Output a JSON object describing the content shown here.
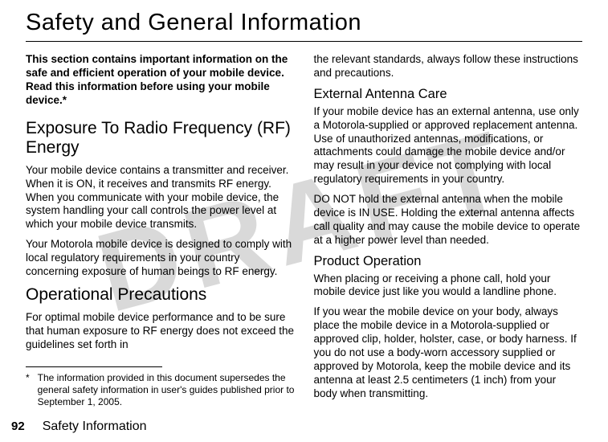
{
  "watermark": "DRAFT",
  "title": "Safety and General Information",
  "intro": "This section contains important information on the safe and efficient operation of your mobile device. Read this information before using your mobile device.*",
  "left": {
    "h2a": "Exposure To Radio Frequency (RF) Energy",
    "p1": "Your mobile device contains a transmitter and receiver. When it is ON, it receives and transmits RF energy. When you communicate with your mobile device, the system handling your call controls the power level at which your mobile device transmits.",
    "p2": "Your Motorola mobile device is designed to comply with local regulatory requirements in your country concerning exposure of human beings to RF energy.",
    "h2b": "Operational Precautions",
    "p3": "For optimal mobile device performance and to be sure that human exposure to RF energy does not exceed the guidelines set forth in"
  },
  "right": {
    "p0": "the relevant standards, always follow these instructions and precautions.",
    "h3a": "External Antenna Care",
    "p1": "If your mobile device has an external antenna, use only a Motorola-supplied or approved replacement antenna. Use of unauthorized antennas, modifications, or attachments could damage the mobile device and/or may result in your device not complying with local regulatory requirements in your country.",
    "p2": "DO NOT hold the external antenna when the mobile device is IN USE. Holding the external antenna affects call quality and may cause the mobile device to operate at a higher power level than needed.",
    "h3b": "Product Operation",
    "p3": "When placing or receiving a phone call, hold your mobile device just like you would a landline phone.",
    "p4": "If you wear the mobile device on your body, always place the mobile device in a Motorola-supplied or approved clip, holder, holster, case, or body harness. If you do not use a body-worn accessory supplied or approved by Motorola, keep the mobile device and its antenna at least 2.5 centimeters (1 inch) from your body when transmitting."
  },
  "footnote": {
    "marker": "*",
    "text": "The information provided in this document supersedes the general safety information in user's guides published prior to September 1, 2005."
  },
  "footer": {
    "page": "92",
    "label": "Safety Information"
  }
}
